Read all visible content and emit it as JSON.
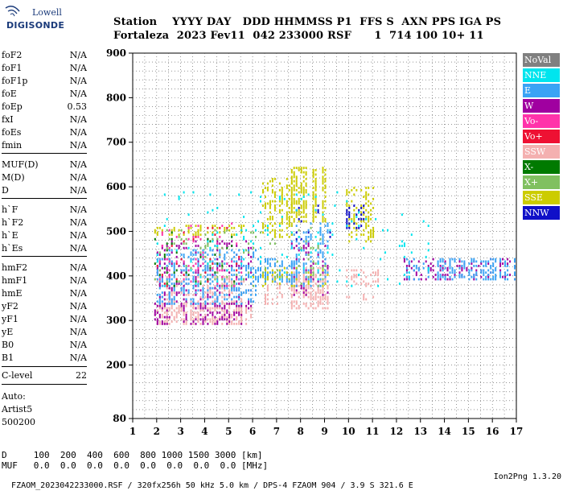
{
  "logo": {
    "line1": "Lowell",
    "line2": "DIGISONDE"
  },
  "header": {
    "line1": "Station    YYYY DAY   DDD HHMMSS P1  FFS S  AXN PPS IGA PS",
    "line2": "Fortaleza  2023 Fev11  042 233000 RSF      1  714 100 10+ 11"
  },
  "params": [
    {
      "name": "foF2",
      "value": "N/A"
    },
    {
      "name": "foF1",
      "value": "N/A"
    },
    {
      "name": "foF1p",
      "value": "N/A"
    },
    {
      "name": "foE",
      "value": "N/A"
    },
    {
      "name": "foEp",
      "value": "0.53"
    },
    {
      "name": "fxI",
      "value": "N/A"
    },
    {
      "name": "foEs",
      "value": "N/A"
    },
    {
      "name": "fmin",
      "value": "N/A"
    },
    {
      "name": "MUF(D)",
      "value": "N/A"
    },
    {
      "name": "M(D)",
      "value": "N/A"
    },
    {
      "name": "D",
      "value": "N/A"
    },
    {
      "name": "h`F",
      "value": "N/A"
    },
    {
      "name": "h`F2",
      "value": "N/A"
    },
    {
      "name": "h`E",
      "value": "N/A"
    },
    {
      "name": "h`Es",
      "value": "N/A"
    },
    {
      "name": "hmF2",
      "value": "N/A"
    },
    {
      "name": "hmF1",
      "value": "N/A"
    },
    {
      "name": "hmE",
      "value": "N/A"
    },
    {
      "name": "yF2",
      "value": "N/A"
    },
    {
      "name": "yF1",
      "value": "N/A"
    },
    {
      "name": "yE",
      "value": "N/A"
    },
    {
      "name": "B0",
      "value": "N/A"
    },
    {
      "name": "B1",
      "value": "N/A"
    }
  ],
  "clevel": {
    "name": "C-level",
    "value": "22"
  },
  "auto": {
    "line1": "Auto:",
    "line2": "Artist5",
    "line3": "500200"
  },
  "legend": [
    {
      "label": "NoVal",
      "color": "#808080"
    },
    {
      "label": "NNE",
      "color": "#00e5ee"
    },
    {
      "label": "E",
      "color": "#3aa3f5"
    },
    {
      "label": "W",
      "color": "#a000a0"
    },
    {
      "label": "Vo-",
      "color": "#ff33aa"
    },
    {
      "label": "Vo+",
      "color": "#ee1133"
    },
    {
      "label": "SSW",
      "color": "#f4b0b0"
    },
    {
      "label": "X-",
      "color": "#007a00"
    },
    {
      "label": "X+",
      "color": "#80c060"
    },
    {
      "label": "SSE",
      "color": "#cccc00"
    },
    {
      "label": "NNW",
      "color": "#1010c8"
    }
  ],
  "bottom": {
    "line1": "D     100  200  400  600  800 1000 1500 3000 [km]",
    "line2": "MUF   0.0  0.0  0.0  0.0  0.0  0.0  0.0  0.0 [MHz]",
    "line3": "FZAOM_2023042233000.RSF / 320fx256h 50 kHz 5.0 km / DPS-4 FZAOM 904 / 3.9 S 321.6 E",
    "line3_right": "Ion2Png 1.3.20"
  },
  "chart_data": {
    "type": "scatter",
    "title": "",
    "xlabel": "",
    "ylabel": "",
    "xlim": [
      1,
      17
    ],
    "ylim": [
      80,
      900
    ],
    "x_ticks": [
      1,
      2,
      3,
      4,
      5,
      6,
      7,
      8,
      9,
      10,
      11,
      12,
      13,
      14,
      15,
      16,
      17
    ],
    "y_ticks": [
      80,
      200,
      300,
      400,
      500,
      600,
      700,
      800,
      900
    ],
    "grid": true,
    "legend_position": "right",
    "clusters": [
      {
        "series": "SSW",
        "x": [
          1.9,
          5.9
        ],
        "y": [
          295,
          340
        ],
        "density": 0.55
      },
      {
        "series": "SSW",
        "x": [
          2.0,
          5.6
        ],
        "y": [
          340,
          400
        ],
        "density": 0.25
      },
      {
        "series": "SSW",
        "x": [
          6.5,
          7.6
        ],
        "y": [
          340,
          410
        ],
        "density": 0.3
      },
      {
        "series": "SSW",
        "x": [
          7.6,
          9.1
        ],
        "y": [
          330,
          420
        ],
        "density": 0.5
      },
      {
        "series": "SSW",
        "x": [
          9.9,
          11.2
        ],
        "y": [
          380,
          415
        ],
        "density": 0.4
      },
      {
        "series": "SSW",
        "x": [
          9.9,
          11.0
        ],
        "y": [
          340,
          360
        ],
        "density": 0.2
      },
      {
        "series": "W",
        "x": [
          1.9,
          5.5
        ],
        "y": [
          295,
          340
        ],
        "density": 0.3
      },
      {
        "series": "W",
        "x": [
          2.0,
          5.9
        ],
        "y": [
          330,
          480
        ],
        "density": 0.18
      },
      {
        "series": "W",
        "x": [
          7.6,
          9.1
        ],
        "y": [
          360,
          480
        ],
        "density": 0.15
      },
      {
        "series": "W",
        "x": [
          12.3,
          17.0
        ],
        "y": [
          395,
          440
        ],
        "density": 0.25
      },
      {
        "series": "E",
        "x": [
          1.9,
          6.1
        ],
        "y": [
          340,
          460
        ],
        "density": 0.3
      },
      {
        "series": "E",
        "x": [
          6.0,
          7.8
        ],
        "y": [
          390,
          440
        ],
        "density": 0.5
      },
      {
        "series": "E",
        "x": [
          7.6,
          9.2
        ],
        "y": [
          380,
          520
        ],
        "density": 0.3
      },
      {
        "series": "E",
        "x": [
          12.3,
          17.0
        ],
        "y": [
          395,
          440
        ],
        "density": 0.45
      },
      {
        "series": "SSE",
        "x": [
          1.9,
          5.6
        ],
        "y": [
          495,
          515
        ],
        "density": 0.4
      },
      {
        "series": "SSE",
        "x": [
          6.4,
          7.6
        ],
        "y": [
          490,
          620
        ],
        "density": 0.35
      },
      {
        "series": "SSE",
        "x": [
          7.6,
          9.0
        ],
        "y": [
          520,
          645
        ],
        "density": 0.6
      },
      {
        "series": "SSE",
        "x": [
          9.9,
          11.0
        ],
        "y": [
          480,
          600
        ],
        "density": 0.3
      },
      {
        "series": "SSE",
        "x": [
          6.0,
          9.1
        ],
        "y": [
          380,
          420
        ],
        "density": 0.15
      },
      {
        "series": "NNW",
        "x": [
          9.9,
          10.6
        ],
        "y": [
          510,
          560
        ],
        "density": 0.4
      },
      {
        "series": "NNW",
        "x": [
          7.6,
          9.3
        ],
        "y": [
          470,
          560
        ],
        "density": 0.05
      },
      {
        "series": "Vo+",
        "x": [
          2.0,
          5.6
        ],
        "y": [
          380,
          510
        ],
        "density": 0.04
      },
      {
        "series": "Vo-",
        "x": [
          2.0,
          5.6
        ],
        "y": [
          380,
          520
        ],
        "density": 0.05
      },
      {
        "series": "X-",
        "x": [
          1.9,
          5.6
        ],
        "y": [
          380,
          510
        ],
        "density": 0.05
      },
      {
        "series": "X+",
        "x": [
          1.9,
          9.0
        ],
        "y": [
          380,
          510
        ],
        "density": 0.05
      },
      {
        "series": "NNE",
        "x": [
          2.0,
          13.3
        ],
        "y": [
          380,
          590
        ],
        "density": 0.03
      }
    ]
  }
}
